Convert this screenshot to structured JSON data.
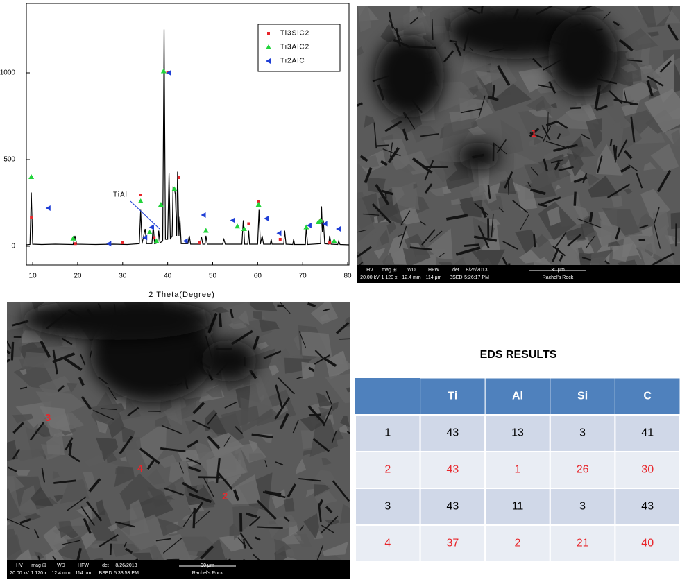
{
  "chart_data": {
    "type": "line",
    "x_label": "2 Theta(Degree)",
    "xlim": [
      8.6,
      80.3
    ],
    "xticks": [
      10,
      20,
      30,
      40,
      50,
      60,
      70,
      80
    ],
    "ylim": [
      -108,
      1400
    ],
    "yticks": [
      0,
      500,
      1000
    ],
    "legend": "upper-right",
    "annotation": "TiAl",
    "series": [
      {
        "type": "line",
        "color": "#000000",
        "x": [
          8.6,
          9.4,
          9.7,
          10.0,
          12,
          15,
          19.0,
          19.4,
          19.8,
          24,
          28,
          31,
          33.7,
          34.0,
          34.3,
          35.0,
          35.3,
          36.5,
          36.8,
          37.1,
          37.8,
          38.0,
          38.3,
          38.9,
          39.2,
          39.5,
          40.0,
          40.3,
          40.6,
          41.0,
          41.2,
          41.5,
          41.7,
          42.0,
          42.2,
          42.5,
          42.7,
          43.0,
          44.5,
          44.8,
          45.1,
          47.2,
          47.5,
          47.8,
          48.3,
          48.5,
          48.8,
          52.2,
          52.5,
          52.8,
          56.5,
          56.8,
          57.1,
          57.8,
          58,
          58.2,
          60.0,
          60.3,
          60.6,
          61.0,
          61.3,
          62.8,
          63,
          63.2,
          65.8,
          66,
          66.3,
          67.8,
          68,
          68.2,
          70.6,
          70.8,
          71.1,
          74.0,
          74.2,
          74.4,
          74.6,
          74.9,
          75.8,
          76,
          76.3,
          77.8,
          78,
          78.3,
          80.3
        ],
        "values": [
          8,
          10,
          310,
          12,
          10,
          12,
          10,
          60,
          12,
          10,
          12,
          10,
          15,
          210,
          15,
          100,
          15,
          15,
          120,
          15,
          20,
          90,
          20,
          30,
          1250,
          40,
          40,
          420,
          40,
          60,
          340,
          330,
          300,
          60,
          430,
          60,
          170,
          15,
          15,
          60,
          12,
          12,
          55,
          12,
          12,
          60,
          12,
          12,
          40,
          12,
          12,
          150,
          12,
          12,
          90,
          12,
          12,
          210,
          12,
          60,
          12,
          12,
          40,
          12,
          12,
          90,
          12,
          10,
          40,
          10,
          10,
          110,
          10,
          15,
          230,
          80,
          150,
          15,
          12,
          60,
          12,
          10,
          30,
          10,
          8
        ]
      },
      {
        "type": "scatter",
        "name": "Ti3SiC2",
        "marker": "square",
        "color": "#e8262b",
        "x": [
          9.7,
          19.5,
          30,
          34,
          37,
          40,
          42.5,
          47,
          58,
          60.2,
          65,
          74,
          76
        ],
        "values": [
          168,
          15,
          20,
          296,
          50,
          1000,
          396,
          20,
          130,
          260,
          40,
          150,
          20
        ]
      },
      {
        "type": "scatter",
        "name": "Ti3AlC2",
        "marker": "triangle-up",
        "color": "#22d43b",
        "x": [
          9.7,
          19,
          34,
          36,
          37.5,
          38.5,
          39.1,
          41.5,
          48.5,
          55.5,
          57,
          60.2,
          70.8,
          73.5,
          74,
          77
        ],
        "values": [
          400,
          45,
          260,
          80,
          30,
          240,
          1010,
          330,
          90,
          115,
          100,
          240,
          110,
          140,
          150,
          30
        ]
      },
      {
        "type": "scatter",
        "name": "Ti2AlC",
        "marker": "triangle-left",
        "color": "#1f3fd6",
        "x": [
          13.5,
          27,
          35,
          36.5,
          40.3,
          44,
          48,
          54.5,
          62,
          64.8,
          71.5,
          75,
          78
        ],
        "values": [
          220,
          15,
          50,
          110,
          1000,
          30,
          180,
          150,
          160,
          75,
          120,
          130,
          100
        ]
      }
    ]
  },
  "sem_images": [
    {
      "labels": [
        "HV",
        "mag ⊞",
        "WD",
        "HFW",
        "det",
        "8/26/2013"
      ],
      "values": [
        "20.00 kV",
        "1 120 x",
        "12.4 mm",
        "114 μm",
        "BSED",
        "5:26:17 PM"
      ],
      "scale": "30 μm",
      "caption": "Rachel's Rock",
      "points": [
        "1"
      ]
    },
    {
      "labels": [
        "HV",
        "mag ⊞",
        "WD",
        "HFW",
        "det",
        "8/26/2013"
      ],
      "values": [
        "20.00 kV",
        "1 120 x",
        "12.4 mm",
        "114 μm",
        "BSED",
        "5:33:53 PM"
      ],
      "scale": "30 μm",
      "caption": "Rachel's Rock",
      "points": [
        "3",
        "4",
        "2"
      ]
    }
  ],
  "table": {
    "title": "EDS RESULTS",
    "header": [
      "Ti",
      "Al",
      "Si",
      "C"
    ],
    "rows": [
      {
        "label": 1,
        "values": [
          43,
          13,
          3,
          41
        ],
        "color": "#000000"
      },
      {
        "label": 2,
        "values": [
          43,
          1,
          26,
          30
        ],
        "color": "#e8262b"
      },
      {
        "label": 3,
        "values": [
          43,
          11,
          3,
          43
        ],
        "color": "#000000"
      },
      {
        "label": 4,
        "values": [
          37,
          2,
          21,
          40
        ],
        "color": "#e8262b"
      }
    ]
  }
}
